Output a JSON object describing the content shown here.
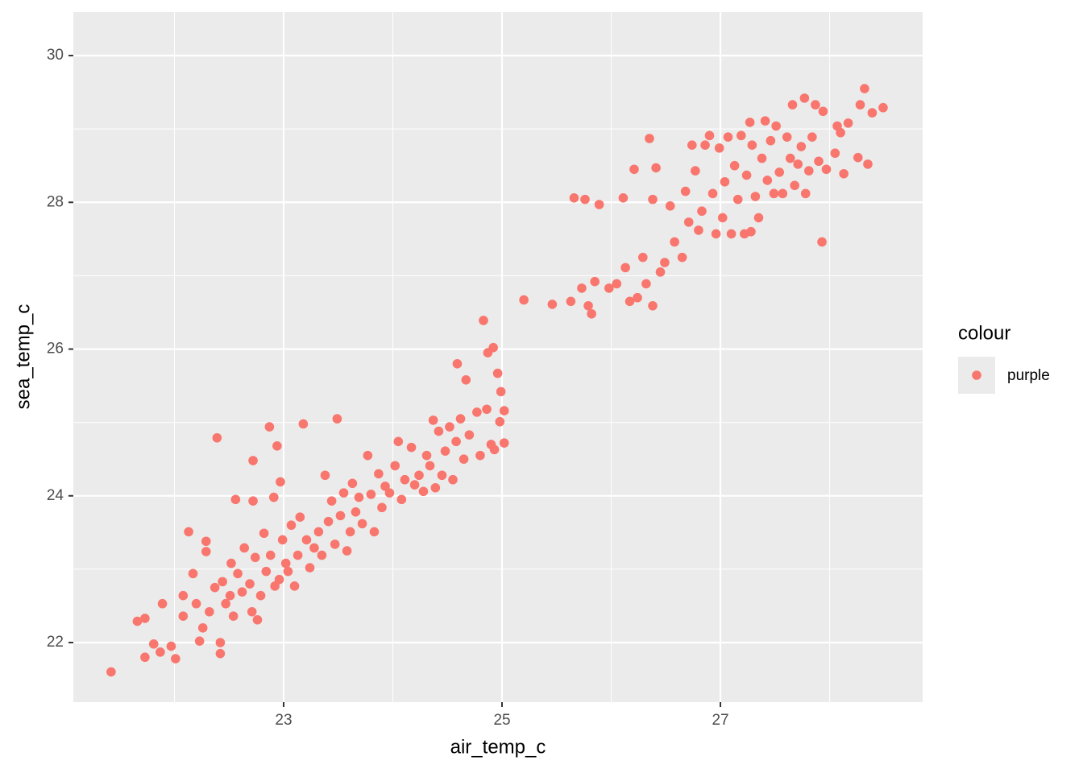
{
  "chart_data": {
    "type": "scatter",
    "x_label": "air_temp_c",
    "y_label": "sea_temp_c",
    "xlim": [
      21.074,
      28.852
    ],
    "ylim": [
      21.188,
      30.593
    ],
    "xticks": [
      23,
      25,
      27
    ],
    "yticks": [
      22,
      24,
      26,
      28,
      30
    ],
    "xminor": [
      22,
      24,
      26,
      28
    ],
    "yminor": [
      23,
      25,
      27,
      29
    ],
    "grid": true,
    "legend_title": "colour",
    "legend_position": "right",
    "series": [
      {
        "name": "purple",
        "color": "#F8766D",
        "x": [
          21.42,
          21.66,
          21.73,
          21.73,
          21.81,
          21.87,
          21.97,
          22.01,
          21.89,
          22.08,
          22.08,
          22.13,
          22.17,
          22.2,
          22.23,
          22.26,
          22.29,
          22.29,
          22.32,
          22.37,
          22.39,
          22.42,
          22.42,
          22.44,
          22.47,
          22.51,
          22.52,
          22.54,
          22.56,
          22.58,
          22.62,
          22.64,
          22.69,
          22.71,
          22.72,
          22.72,
          22.74,
          22.76,
          22.79,
          22.82,
          22.84,
          22.87,
          22.88,
          22.91,
          22.92,
          22.94,
          22.96,
          22.97,
          22.99,
          23.02,
          23.04,
          23.07,
          23.1,
          23.13,
          23.15,
          23.18,
          23.21,
          23.24,
          23.28,
          23.32,
          23.35,
          23.38,
          23.41,
          23.44,
          23.47,
          23.49,
          23.52,
          23.55,
          23.58,
          23.61,
          23.63,
          23.66,
          23.69,
          23.72,
          23.77,
          23.8,
          23.83,
          23.87,
          23.9,
          23.93,
          23.97,
          24.02,
          24.05,
          24.08,
          24.11,
          24.17,
          24.2,
          24.24,
          24.28,
          24.31,
          24.34,
          24.37,
          24.39,
          24.42,
          24.45,
          24.48,
          24.52,
          24.55,
          24.58,
          24.59,
          24.62,
          24.65,
          24.67,
          24.7,
          24.77,
          24.8,
          24.83,
          24.86,
          24.87,
          24.9,
          24.92,
          24.93,
          24.96,
          24.98,
          24.99,
          25.02,
          25.02,
          25.2,
          25.46,
          25.63,
          25.66,
          25.73,
          25.76,
          25.79,
          25.82,
          25.85,
          25.89,
          25.98,
          26.05,
          26.11,
          26.13,
          26.17,
          26.21,
          26.24,
          26.29,
          26.32,
          26.35,
          26.38,
          26.38,
          26.41,
          26.45,
          26.49,
          26.54,
          26.58,
          26.65,
          26.68,
          26.71,
          26.74,
          26.77,
          26.8,
          26.83,
          26.86,
          26.9,
          26.93,
          26.96,
          26.99,
          27.02,
          27.04,
          27.07,
          27.1,
          27.13,
          27.16,
          27.19,
          27.22,
          27.24,
          27.27,
          27.28,
          27.29,
          27.32,
          27.35,
          27.38,
          27.41,
          27.43,
          27.46,
          27.49,
          27.51,
          27.54,
          27.57,
          27.61,
          27.64,
          27.66,
          27.68,
          27.71,
          27.74,
          27.77,
          27.78,
          27.81,
          27.84,
          27.87,
          27.9,
          27.93,
          27.94,
          27.97,
          28.05,
          28.07,
          28.1,
          28.13,
          28.17,
          28.26,
          28.28,
          28.32,
          28.35,
          28.39,
          28.49
        ],
        "values": [
          21.6,
          22.29,
          22.33,
          21.8,
          21.98,
          21.87,
          21.95,
          21.78,
          22.53,
          22.36,
          22.64,
          23.51,
          22.94,
          22.53,
          22.02,
          22.2,
          23.38,
          23.24,
          22.42,
          22.75,
          24.79,
          21.85,
          22.0,
          22.83,
          22.53,
          22.64,
          23.08,
          22.36,
          23.95,
          22.94,
          22.69,
          23.29,
          22.8,
          22.42,
          23.93,
          24.48,
          23.16,
          22.31,
          22.64,
          23.49,
          22.97,
          24.94,
          23.19,
          23.98,
          22.77,
          24.68,
          22.86,
          24.19,
          23.4,
          23.08,
          22.97,
          23.6,
          22.77,
          23.19,
          23.71,
          24.98,
          23.4,
          23.02,
          23.29,
          23.51,
          23.19,
          24.28,
          23.65,
          23.93,
          23.34,
          25.05,
          23.73,
          24.04,
          23.25,
          23.51,
          24.17,
          23.78,
          23.98,
          23.62,
          24.55,
          24.02,
          23.51,
          24.3,
          23.84,
          24.13,
          24.04,
          24.41,
          24.74,
          23.95,
          24.22,
          24.66,
          24.15,
          24.28,
          24.06,
          24.55,
          24.41,
          25.03,
          24.11,
          24.88,
          24.28,
          24.61,
          24.94,
          24.22,
          24.74,
          25.8,
          25.05,
          24.5,
          25.58,
          24.83,
          25.14,
          24.55,
          26.39,
          25.18,
          25.95,
          24.7,
          26.02,
          24.63,
          25.67,
          25.01,
          25.42,
          25.16,
          24.72,
          26.67,
          26.61,
          26.65,
          28.06,
          26.83,
          28.04,
          26.59,
          26.48,
          26.92,
          27.97,
          26.83,
          26.89,
          28.06,
          27.11,
          26.65,
          28.45,
          26.7,
          27.25,
          26.89,
          28.87,
          28.04,
          26.59,
          28.47,
          27.05,
          27.18,
          27.95,
          27.46,
          27.25,
          28.15,
          27.73,
          28.78,
          28.43,
          27.62,
          27.88,
          28.78,
          28.91,
          28.12,
          27.57,
          28.74,
          27.79,
          28.28,
          28.89,
          27.57,
          28.5,
          28.04,
          28.91,
          27.57,
          28.37,
          29.09,
          27.6,
          28.78,
          28.08,
          27.79,
          28.6,
          29.11,
          28.3,
          28.84,
          28.12,
          29.04,
          28.41,
          28.12,
          28.89,
          28.6,
          29.33,
          28.23,
          28.52,
          28.76,
          29.42,
          28.12,
          28.43,
          28.89,
          29.33,
          28.56,
          27.46,
          29.24,
          28.45,
          28.67,
          29.04,
          28.95,
          28.39,
          29.08,
          28.61,
          29.33,
          29.55,
          28.52,
          29.22,
          29.29
        ]
      }
    ]
  }
}
